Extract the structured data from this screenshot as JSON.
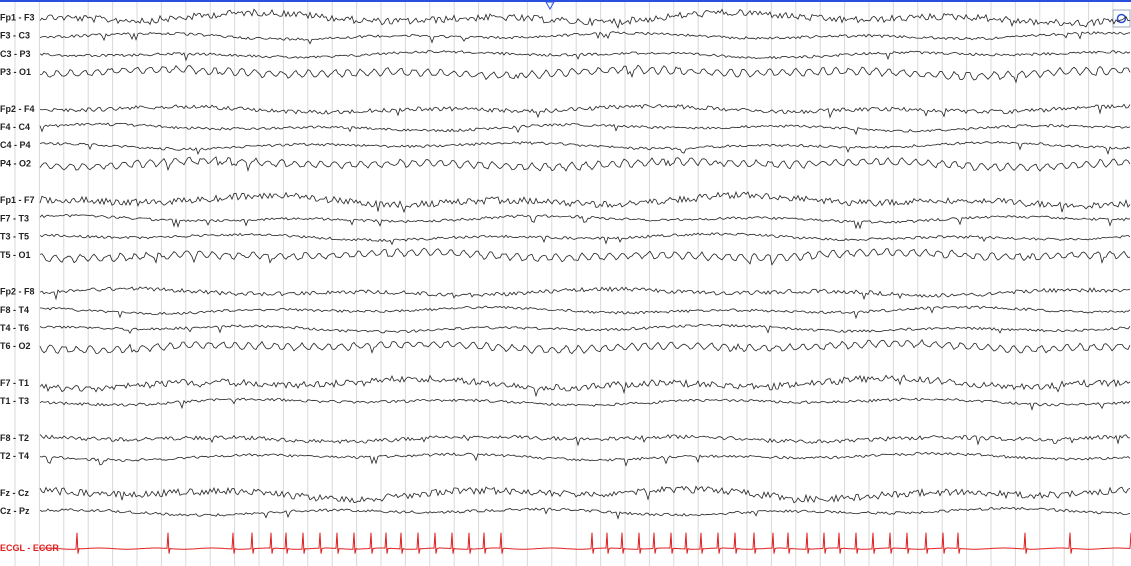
{
  "montage": {
    "groups": [
      {
        "channels": [
          "Fp1 - F3",
          "F3 - C3",
          "C3 - P3",
          "P3 - O1"
        ]
      },
      {
        "channels": [
          "Fp2 - F4",
          "F4 - C4",
          "C4 - P4",
          "P4 - O2"
        ]
      },
      {
        "channels": [
          "Fp1 - F7",
          "F7 - T3",
          "T3 - T5",
          "T5 - O1"
        ]
      },
      {
        "channels": [
          "Fp2 - F8",
          "F8 - T4",
          "T4 - T6",
          "T6 - O2"
        ]
      },
      {
        "channels": [
          "F7 - T1",
          "T1 - T3"
        ]
      },
      {
        "channels": [
          "F8 - T2",
          "T2 - T4"
        ]
      },
      {
        "channels": [
          "Fz - Cz",
          "Cz - Pz"
        ]
      },
      {
        "channels": [
          "ECGL - ECGR"
        ]
      }
    ]
  }
}
